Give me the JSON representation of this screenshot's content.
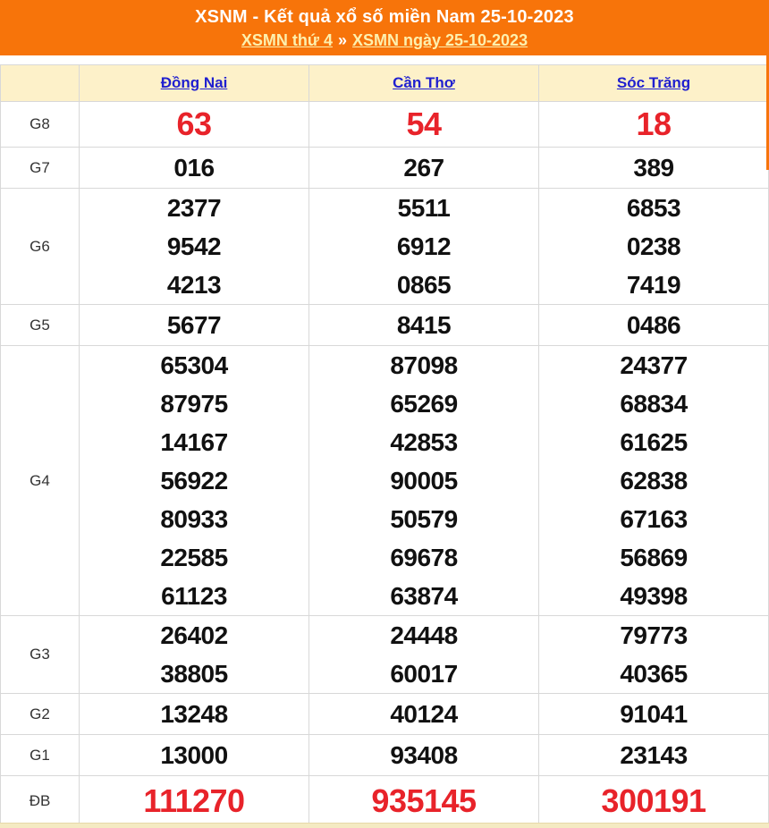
{
  "header": {
    "title": "XSNM - Kết quả xổ số miền Nam 25-10-2023",
    "separator": "»",
    "links": [
      {
        "label": "XSMN thứ 4"
      },
      {
        "label": "XSMN ngày 25-10-2023"
      }
    ],
    "colors": {
      "background": "#f7740a",
      "title": "#ffffff",
      "link": "#fdf0ae"
    }
  },
  "table": {
    "columns": [
      "Đồng Nai",
      "Cần Thơ",
      "Sóc Trăng"
    ],
    "rows": [
      {
        "label": "G8",
        "type": "red-large",
        "values": [
          [
            "63"
          ],
          [
            "54"
          ],
          [
            "18"
          ]
        ]
      },
      {
        "label": "G7",
        "type": "normal",
        "values": [
          [
            "016"
          ],
          [
            "267"
          ],
          [
            "389"
          ]
        ]
      },
      {
        "label": "G6",
        "type": "normal",
        "values": [
          [
            "2377",
            "9542",
            "4213"
          ],
          [
            "5511",
            "6912",
            "0865"
          ],
          [
            "6853",
            "0238",
            "7419"
          ]
        ]
      },
      {
        "label": "G5",
        "type": "normal",
        "values": [
          [
            "5677"
          ],
          [
            "8415"
          ],
          [
            "0486"
          ]
        ]
      },
      {
        "label": "G4",
        "type": "normal",
        "values": [
          [
            "65304",
            "87975",
            "14167",
            "56922",
            "80933",
            "22585",
            "61123"
          ],
          [
            "87098",
            "65269",
            "42853",
            "90005",
            "50579",
            "69678",
            "63874"
          ],
          [
            "24377",
            "68834",
            "61625",
            "62838",
            "67163",
            "56869",
            "49398"
          ]
        ]
      },
      {
        "label": "G3",
        "type": "normal",
        "values": [
          [
            "26402",
            "38805"
          ],
          [
            "24448",
            "60017"
          ],
          [
            "79773",
            "40365"
          ]
        ]
      },
      {
        "label": "G2",
        "type": "normal",
        "values": [
          [
            "13248"
          ],
          [
            "40124"
          ],
          [
            "91041"
          ]
        ]
      },
      {
        "label": "G1",
        "type": "normal",
        "values": [
          [
            "13000"
          ],
          [
            "93408"
          ],
          [
            "23143"
          ]
        ]
      },
      {
        "label": "ĐB",
        "type": "red-large",
        "values": [
          [
            "111270"
          ],
          [
            "935145"
          ],
          [
            "300191"
          ]
        ]
      }
    ],
    "colors": {
      "header_background": "#fdf1c9",
      "link_blue": "#2020cf",
      "number_red": "#e8232a",
      "number_black": "#111111",
      "border": "#d8d8d8"
    }
  }
}
